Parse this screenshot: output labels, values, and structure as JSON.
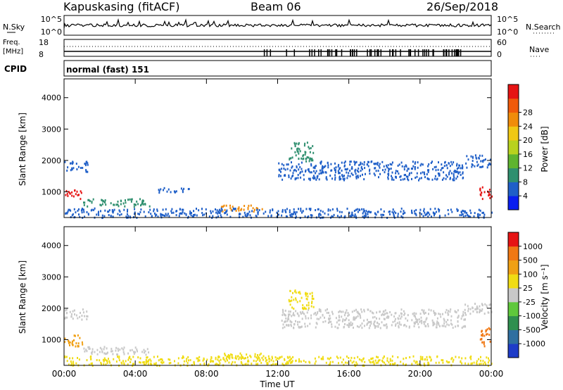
{
  "header": {
    "station": "Kapuskasing (fitACF)",
    "beam": "Beam 06",
    "date": "26/Sep/2018"
  },
  "noise_panel": {
    "left_label": "N.Sky",
    "right_label": "N.Search",
    "left_ticks": [
      "10^5",
      "10^0"
    ],
    "right_ticks": [
      "10^5",
      "10^0"
    ]
  },
  "freq_panel": {
    "left_label_line1": "Freq.",
    "left_label_line2": "[MHz]",
    "left_ticks": [
      "18",
      "8"
    ],
    "right_label": "Nave",
    "right_ticks": [
      "60",
      "0"
    ]
  },
  "cpid_panel": {
    "label": "CPID",
    "mode_text": "normal (fast) 151"
  },
  "chart_data": [
    {
      "type": "heatmap",
      "name": "power",
      "xlabel": "",
      "ylabel": "Slant Range [km]",
      "x_ticks": [
        "00:00",
        "04:00",
        "08:00",
        "12:00",
        "16:00",
        "20:00",
        "00:00"
      ],
      "xlim_hours": [
        0,
        24
      ],
      "y_ticks": [
        1000,
        2000,
        3000,
        4000
      ],
      "ylim": [
        180,
        4600
      ],
      "colorbar": {
        "label": "Power [dB]",
        "ticks": [
          "4",
          "8",
          "12",
          "16",
          "20",
          "24",
          "28"
        ],
        "colors": [
          "#0a1ef0",
          "#1f5fc8",
          "#2f8f6f",
          "#5fb42f",
          "#b8d21e",
          "#f0c814",
          "#f08c0a",
          "#f05a0a",
          "#e61414"
        ]
      },
      "echo_regions": [
        {
          "t": [
            0.0,
            1.3
          ],
          "r": [
            1650,
            2000
          ],
          "color": "#1f5fc8"
        },
        {
          "t": [
            0.0,
            1.0
          ],
          "r": [
            800,
            1100
          ],
          "color": "#e61414"
        },
        {
          "t": [
            1.0,
            4.8
          ],
          "r": [
            550,
            800
          ],
          "color": "#2f8f6f"
        },
        {
          "t": [
            5.2,
            7.2
          ],
          "r": [
            1000,
            1150
          ],
          "color": "#1f5fc8"
        },
        {
          "t": [
            8.8,
            11.2
          ],
          "r": [
            400,
            600
          ],
          "color": "#f08c0a"
        },
        {
          "t": [
            12.0,
            22.5
          ],
          "r": [
            1400,
            2000
          ],
          "color": "#1f5fc8"
        },
        {
          "t": [
            12.6,
            14.0
          ],
          "r": [
            2000,
            2600
          ],
          "color": "#2f8f6f"
        },
        {
          "t": [
            22.5,
            24.0
          ],
          "r": [
            1800,
            2200
          ],
          "color": "#1f5fc8"
        },
        {
          "t": [
            23.3,
            24.0
          ],
          "r": [
            800,
            1200
          ],
          "color": "#e61414"
        },
        {
          "t": [
            0.0,
            24.0
          ],
          "r": [
            200,
            500
          ],
          "color": "#1f5fc8"
        }
      ]
    },
    {
      "type": "heatmap",
      "name": "velocity",
      "xlabel": "Time UT",
      "ylabel": "Slant Range [km]",
      "x_ticks": [
        "00:00",
        "04:00",
        "08:00",
        "12:00",
        "16:00",
        "20:00",
        "00:00"
      ],
      "xlim_hours": [
        0,
        24
      ],
      "y_ticks": [
        1000,
        2000,
        3000,
        4000
      ],
      "ylim": [
        180,
        4600
      ],
      "colorbar": {
        "label": "Velocity [m s⁻¹]",
        "ticks": [
          "1000",
          "500",
          "100",
          "25",
          "-25",
          "-100",
          "-500",
          "-1000"
        ],
        "colors": [
          "#1e3cc8",
          "#2f6fa0",
          "#2f8f4f",
          "#5fc83c",
          "#c8c8c8",
          "#f0dc14",
          "#f0a014",
          "#f07814",
          "#e61414"
        ]
      },
      "echo_regions": [
        {
          "t": [
            0.0,
            1.3
          ],
          "r": [
            1650,
            2000
          ],
          "color": "#c8c8c8"
        },
        {
          "t": [
            0.0,
            1.0
          ],
          "r": [
            800,
            1200
          ],
          "color": "#f0a014"
        },
        {
          "t": [
            1.0,
            4.8
          ],
          "r": [
            550,
            800
          ],
          "color": "#c8c8c8"
        },
        {
          "t": [
            8.8,
            11.2
          ],
          "r": [
            400,
            600
          ],
          "color": "#f0dc14"
        },
        {
          "t": [
            12.0,
            22.5
          ],
          "r": [
            1400,
            2000
          ],
          "color": "#c8c8c8"
        },
        {
          "t": [
            12.6,
            14.0
          ],
          "r": [
            2000,
            2600
          ],
          "color": "#f0dc14"
        },
        {
          "t": [
            22.5,
            24.0
          ],
          "r": [
            1800,
            2200
          ],
          "color": "#c8c8c8"
        },
        {
          "t": [
            23.3,
            24.0
          ],
          "r": [
            800,
            1400
          ],
          "color": "#f07814"
        },
        {
          "t": [
            0.0,
            24.0
          ],
          "r": [
            200,
            500
          ],
          "color": "#f0dc14"
        }
      ]
    }
  ]
}
